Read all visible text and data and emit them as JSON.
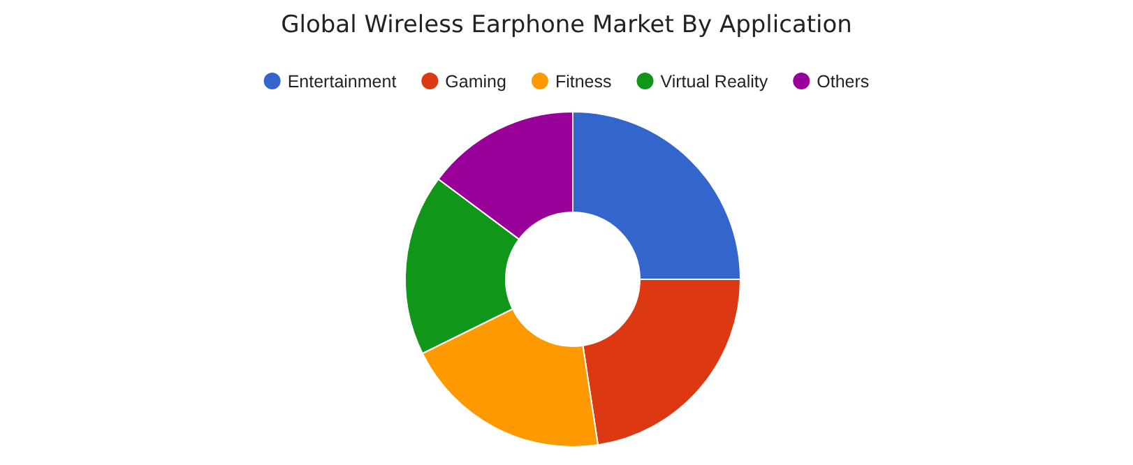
{
  "chart_data": {
    "type": "donut",
    "title": "Global Wireless Earphone Market By Application",
    "categories": [
      "Entertainment",
      "Gaming",
      "Fitness",
      "Virtual Reality",
      "Others"
    ],
    "values": [
      25,
      22.6,
      20.1,
      17.5,
      14.8
    ],
    "colors": [
      "#3366cc",
      "#dc3912",
      "#ff9900",
      "#109618",
      "#990099"
    ],
    "legend": "top"
  }
}
